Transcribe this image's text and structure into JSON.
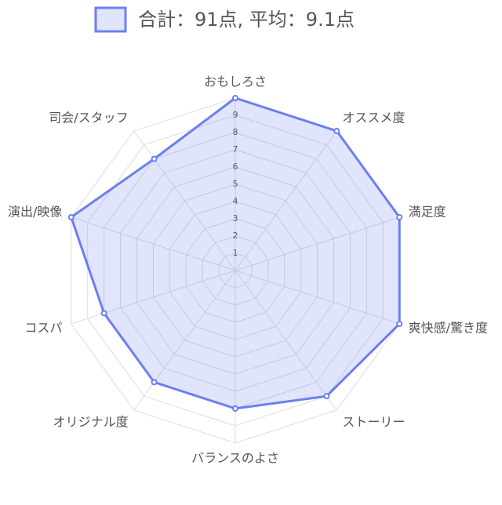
{
  "chart_data": {
    "type": "radar",
    "legend": "合計：91点, 平均：9.1点",
    "categories": [
      "おもしろさ",
      "オススメ度",
      "満足度",
      "爽快感/驚き度",
      "ストーリー",
      "バランスのよさ",
      "オリジナル度",
      "コスパ",
      "演出/映像",
      "司会/スタッフ"
    ],
    "values": [
      10,
      10,
      10,
      10,
      9,
      8,
      8,
      8,
      10,
      8
    ],
    "color": "#6a7ff0",
    "rlim": [
      0,
      10
    ],
    "rticks": [
      1,
      2,
      3,
      4,
      5,
      6,
      7,
      8,
      9
    ],
    "grid": true
  }
}
